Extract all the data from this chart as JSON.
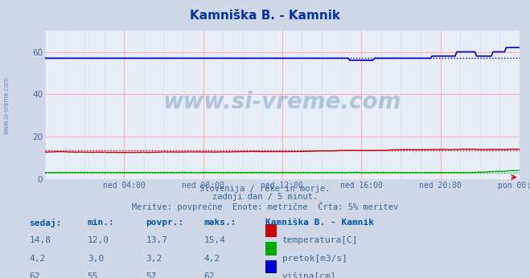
{
  "title": "Kamniška B. - Kamnik",
  "bg_color": "#d0d8e8",
  "plot_bg_color": "#e8eef8",
  "grid_color_major": "#ffb0b0",
  "grid_color_minor": "#d8d8ff",
  "xlabel_color": "#4466aa",
  "title_color": "#0033aa",
  "text_color": "#336699",
  "xlim": [
    0,
    288
  ],
  "ylim": [
    0,
    70
  ],
  "yticks": [
    0,
    20,
    40,
    60
  ],
  "xtick_labels": [
    "ned 04:00",
    "ned 08:00",
    "ned 12:00",
    "ned 16:00",
    "ned 20:00",
    "pon 00:00"
  ],
  "xtick_positions": [
    48,
    96,
    144,
    192,
    240,
    288
  ],
  "subtitle1": "Slovenija / reke in morje.",
  "subtitle2": "zadnji dan / 5 minut.",
  "subtitle3": "Meritve: povprečne  Enote: metrične  Črta: 5% meritev",
  "table_header": [
    "sedaj:",
    "min.:",
    "povpr.:",
    "maks.:",
    "Kamniška B. - Kamnik"
  ],
  "table_rows": [
    [
      "14,8",
      "12,0",
      "13,7",
      "15,4",
      "temperatura[C]",
      "#cc0000"
    ],
    [
      "4,2",
      "3,0",
      "3,2",
      "4,2",
      "pretok[m3/s]",
      "#00aa00"
    ],
    [
      "62",
      "55",
      "57",
      "62",
      "višina[cm]",
      "#0000cc"
    ]
  ],
  "temp_avg": 13.7,
  "flow_avg": 3.2,
  "height_avg": 57,
  "watermark": "www.si-vreme.com"
}
